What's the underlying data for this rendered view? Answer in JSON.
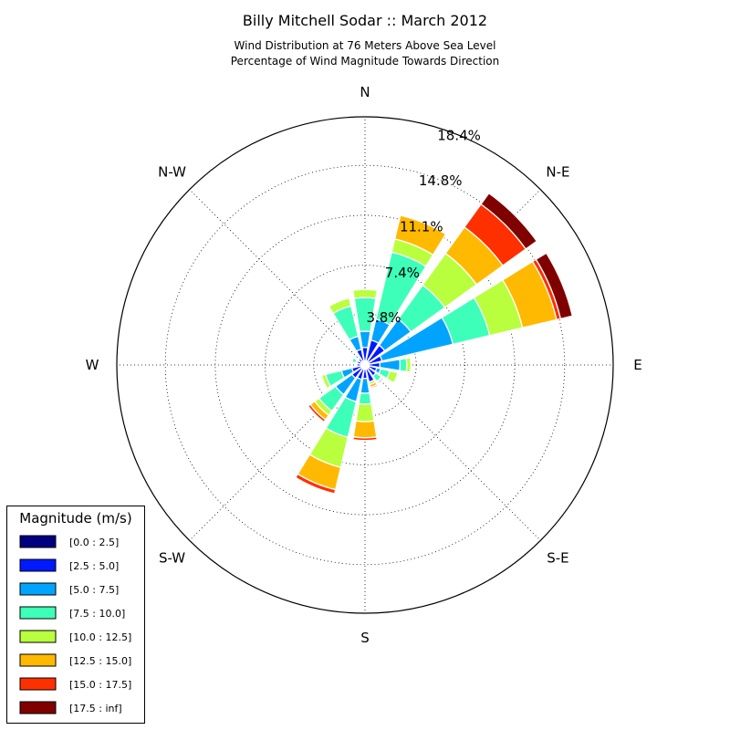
{
  "chart_data": {
    "type": "windrose",
    "title": "Billy Mitchell Sodar :: March 2012",
    "subtitle_lines": [
      "Wind Distribution at 76 Meters Above Sea Level",
      "Percentage of Wind Magnitude Towards Direction"
    ],
    "direction_labels": [
      "N",
      "N-E",
      "E",
      "S-E",
      "S",
      "S-W",
      "W",
      "N-W"
    ],
    "ring_values": [
      3.8,
      7.4,
      11.1,
      14.8,
      18.4
    ],
    "ring_labels": [
      "3.8%",
      "7.4%",
      "11.1%",
      "14.8%",
      "18.4%"
    ],
    "grid": true,
    "legend": {
      "title": "Magnitude (m/s)",
      "position": "bottom-left",
      "entries": [
        {
          "label": "[0.0 : 2.5]",
          "color": "#000080"
        },
        {
          "label": "[2.5 : 5.0]",
          "color": "#0019ff"
        },
        {
          "label": "[5.0 : 7.5]",
          "color": "#00a4ff"
        },
        {
          "label": "[7.5 : 10.0]",
          "color": "#3dffb9"
        },
        {
          "label": "[10.0 : 12.5]",
          "color": "#b9ff3d"
        },
        {
          "label": "[12.5 : 15.0]",
          "color": "#ffb900"
        },
        {
          "label": "[15.0 : 17.5]",
          "color": "#ff3000"
        },
        {
          "label": "[17.5 : inf]",
          "color": "#800000"
        }
      ]
    },
    "direction_bins_deg": [
      0,
      22.5,
      45,
      67.5,
      90,
      112.5,
      135,
      157.5,
      180,
      202.5,
      225,
      247.5,
      270,
      292.5,
      315,
      337.5
    ],
    "cumulative_percent": [
      [
        0.3,
        1.3,
        2.5,
        5.0,
        5.6,
        5.6,
        5.6,
        5.6
      ],
      [
        0.3,
        1.9,
        3.5,
        8.6,
        9.6,
        11.4,
        11.4,
        11.4
      ],
      [
        0.3,
        1.8,
        4.2,
        7.3,
        10.2,
        12.6,
        14.7,
        15.7
      ],
      [
        0.3,
        1.3,
        6.7,
        9.5,
        12.0,
        14.6,
        14.9,
        15.8
      ],
      [
        0.3,
        1.1,
        2.6,
        3.1,
        3.4,
        3.4,
        3.4,
        3.4
      ],
      [
        0.3,
        0.9,
        1.2,
        1.9,
        2.5,
        2.5,
        2.5,
        2.5
      ],
      [
        0.3,
        1.0,
        1.0,
        1.5,
        1.5,
        1.6,
        1.6,
        1.7
      ],
      [
        0.3,
        1.3,
        1.3,
        1.3,
        1.5,
        1.7,
        1.8,
        1.8
      ],
      [
        0.3,
        1.0,
        2.1,
        2.9,
        4.2,
        5.4,
        5.6,
        5.6
      ],
      [
        0.3,
        1.1,
        2.8,
        5.5,
        7.8,
        9.5,
        9.8,
        9.8
      ],
      [
        0.3,
        1.2,
        2.7,
        4.2,
        4.6,
        5.0,
        5.2,
        5.2
      ],
      [
        0.3,
        1.0,
        1.8,
        3.0,
        3.3,
        3.3,
        3.3,
        3.3
      ],
      [
        0.3,
        0.6,
        0.6,
        0.6,
        0.6,
        0.6,
        0.6,
        0.6
      ],
      [
        0.3,
        0.6,
        0.7,
        1.0,
        1.0,
        1.0,
        1.0,
        1.0
      ],
      [
        0.3,
        0.6,
        0.7,
        0.7,
        0.7,
        0.7,
        0.7,
        0.7
      ],
      [
        0.3,
        1.2,
        2.2,
        4.5,
        5.1,
        5.1,
        5.1,
        5.1
      ]
    ]
  }
}
